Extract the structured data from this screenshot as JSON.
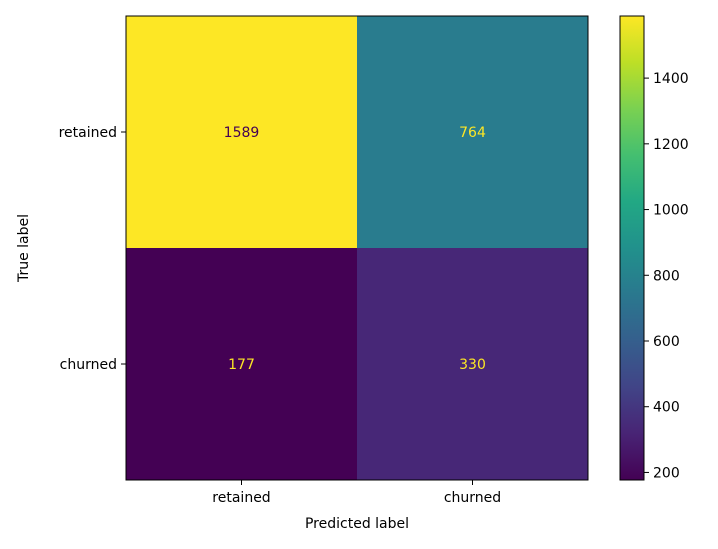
{
  "chart_data": {
    "type": "heatmap",
    "title": "",
    "xlabel": "Predicted label",
    "ylabel": "True label",
    "x_categories": [
      "retained",
      "churned"
    ],
    "y_categories": [
      "retained",
      "churned"
    ],
    "values": [
      [
        1589,
        764
      ],
      [
        177,
        330
      ]
    ],
    "colormap": "viridis",
    "colorbar": {
      "range": [
        177,
        1589
      ],
      "ticks": [
        200,
        400,
        600,
        800,
        1000,
        1200,
        1400
      ]
    },
    "cell_text_colors": {
      "light_cell": "#440154",
      "dark_cell": "#fde725"
    },
    "grid": false,
    "legend": "colorbar-right"
  }
}
